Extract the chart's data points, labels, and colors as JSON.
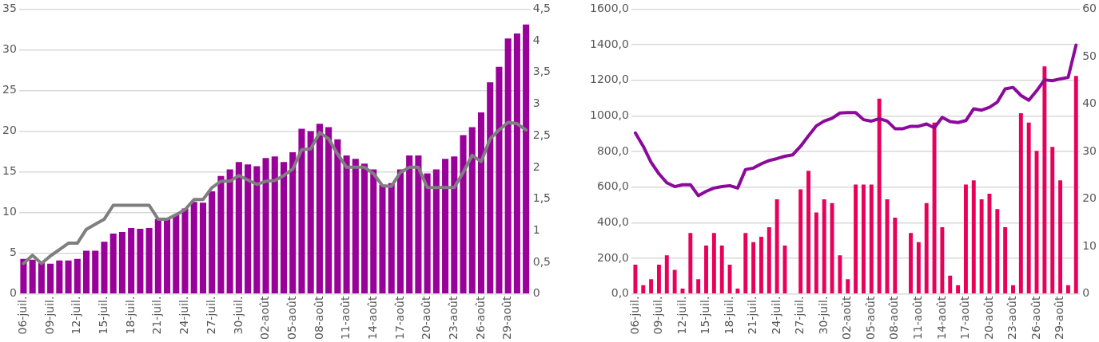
{
  "chart_data": [
    {
      "type": "bar",
      "categories": [
        "06-juil.",
        null,
        null,
        "09-juil.",
        null,
        null,
        "12-juil.",
        null,
        null,
        "15-juil.",
        null,
        null,
        "18-juil.",
        null,
        null,
        "21-juil.",
        null,
        null,
        "24-juil.",
        null,
        null,
        "27-juil.",
        null,
        null,
        "30-juil.",
        null,
        null,
        "02-août",
        null,
        null,
        "05-août",
        null,
        null,
        "08-août",
        null,
        null,
        "11-août",
        null,
        null,
        "14-août",
        null,
        null,
        "17-août",
        null,
        null,
        "20-août",
        null,
        null,
        "23-août",
        null,
        null,
        "26-août",
        null,
        null,
        "29-août",
        null,
        null
      ],
      "series": [
        {
          "color": "#990099",
          "values": [
            4.3,
            4.2,
            3.8,
            3.7,
            4.1,
            4.1,
            4.3,
            5.3,
            5.3,
            6.4,
            7.4,
            7.6,
            8.1,
            8.0,
            8.1,
            9.2,
            9.2,
            9.7,
            10.5,
            11.3,
            11.2,
            12.6,
            14.5,
            15.3,
            16.2,
            15.9,
            15.7,
            16.7,
            16.9,
            16.2,
            17.4,
            20.3,
            20.0,
            20.9,
            20.5,
            19.0,
            17.0,
            16.6,
            16.0,
            15.3,
            13.4,
            13.6,
            15.3,
            17.0,
            17.0,
            14.8,
            15.3,
            16.6,
            16.9,
            19.5,
            20.5,
            22.3,
            26.0,
            27.9,
            31.4,
            32.0,
            33.1
          ]
        },
        {
          "type": "line",
          "axis": "y2",
          "color": "#7f7f7f",
          "values": [
            0.48,
            0.61,
            0.48,
            0.6,
            0.7,
            0.8,
            0.8,
            1.02,
            1.1,
            1.18,
            1.4,
            1.4,
            1.4,
            1.4,
            1.4,
            1.18,
            1.18,
            1.25,
            1.33,
            1.49,
            1.49,
            1.68,
            1.78,
            1.78,
            1.87,
            1.8,
            1.73,
            1.78,
            1.79,
            1.87,
            1.97,
            2.28,
            2.29,
            2.55,
            2.45,
            2.21,
            2.0,
            2.0,
            2.0,
            1.9,
            1.71,
            1.7,
            1.92,
            2.0,
            2.0,
            1.68,
            1.68,
            1.68,
            1.68,
            1.92,
            2.19,
            2.09,
            2.45,
            2.59,
            2.71,
            2.69,
            2.59
          ]
        }
      ],
      "ylim": [
        0,
        35
      ],
      "yticks": [
        0,
        5,
        10,
        15,
        20,
        25,
        30,
        35
      ],
      "y2lim": [
        0,
        4.5
      ],
      "y2ticks": [
        0,
        {
          "value": 0.5,
          "label": "0,5"
        },
        1,
        {
          "value": 1.5,
          "label": "1,5"
        },
        2,
        {
          "value": 2.5,
          "label": "2,5"
        },
        3,
        {
          "value": 3.5,
          "label": "3,5"
        },
        4,
        {
          "value": 4.5,
          "label": "4,5"
        }
      ],
      "grid": "y",
      "legend": false,
      "marker": "none",
      "line_style": "solid"
    },
    {
      "type": "bar",
      "categories": [
        "06-juil.",
        null,
        null,
        "09-juil.",
        null,
        null,
        "12-juil.",
        null,
        null,
        "15-juil.",
        null,
        null,
        "18-juil.",
        null,
        null,
        "21-juil.",
        null,
        null,
        "24-juil.",
        null,
        null,
        "27-juil.",
        null,
        null,
        "30-juil.",
        null,
        null,
        "02-août",
        null,
        null,
        "05-août",
        null,
        null,
        "08-août",
        null,
        null,
        "11-août",
        null,
        null,
        "14-août",
        null,
        null,
        "17-août",
        null,
        null,
        "20-août",
        null,
        null,
        "23-août",
        null,
        null,
        "26-août",
        null,
        null,
        "29-août",
        null,
        null
      ],
      "series": [
        {
          "color": "#e8005a",
          "values": [
            164,
            49,
            82,
            164,
            217,
            135,
            30,
            342,
            82,
            271,
            342,
            271,
            164,
            30,
            342,
            291,
            321,
            375,
            531,
            271,
            null,
            587,
            691,
            457,
            531,
            510,
            217,
            82,
            614,
            614,
            614,
            1097,
            531,
            428,
            null,
            342,
            291,
            510,
            962,
            375,
            102,
            49,
            614,
            638,
            531,
            563,
            477,
            375,
            49,
            1015,
            962,
            803,
            1278,
            826,
            638,
            49,
            1225
          ]
        },
        {
          "type": "line",
          "axis": "y2",
          "color": "#8b0a9b",
          "values": [
            33.9,
            31.1,
            27.7,
            25.3,
            23.4,
            22.6,
            23.0,
            23.0,
            20.7,
            21.6,
            22.3,
            22.6,
            22.8,
            22.3,
            26.2,
            26.5,
            27.4,
            28.1,
            28.5,
            29.0,
            29.3,
            31.1,
            33.3,
            35.4,
            36.4,
            37.0,
            38.1,
            38.2,
            38.2,
            36.7,
            36.4,
            36.9,
            36.4,
            34.8,
            34.8,
            35.3,
            35.3,
            35.8,
            35.0,
            37.2,
            36.3,
            36.1,
            36.5,
            39.0,
            38.7,
            39.3,
            40.4,
            43.2,
            43.5,
            41.8,
            40.8,
            42.8,
            45.1,
            44.9,
            45.3,
            45.6,
            52.4
          ]
        }
      ],
      "ylim": [
        0,
        1600
      ],
      "yticks": [
        {
          "value": 0,
          "label": "0,0"
        },
        {
          "value": 200,
          "label": "200,0"
        },
        {
          "value": 400,
          "label": "400,0"
        },
        {
          "value": 600,
          "label": "600,0"
        },
        {
          "value": 800,
          "label": "800,0"
        },
        {
          "value": 1000,
          "label": "1000,0"
        },
        {
          "value": 1200,
          "label": "1200,0"
        },
        {
          "value": 1400,
          "label": "1400,0"
        },
        {
          "value": 1600,
          "label": "1600,0"
        }
      ],
      "y2lim": [
        0,
        60
      ],
      "y2ticks": [
        0,
        10,
        20,
        30,
        40,
        50,
        60
      ],
      "grid": "y",
      "legend": false,
      "marker": "none",
      "line_style": "solid"
    }
  ]
}
